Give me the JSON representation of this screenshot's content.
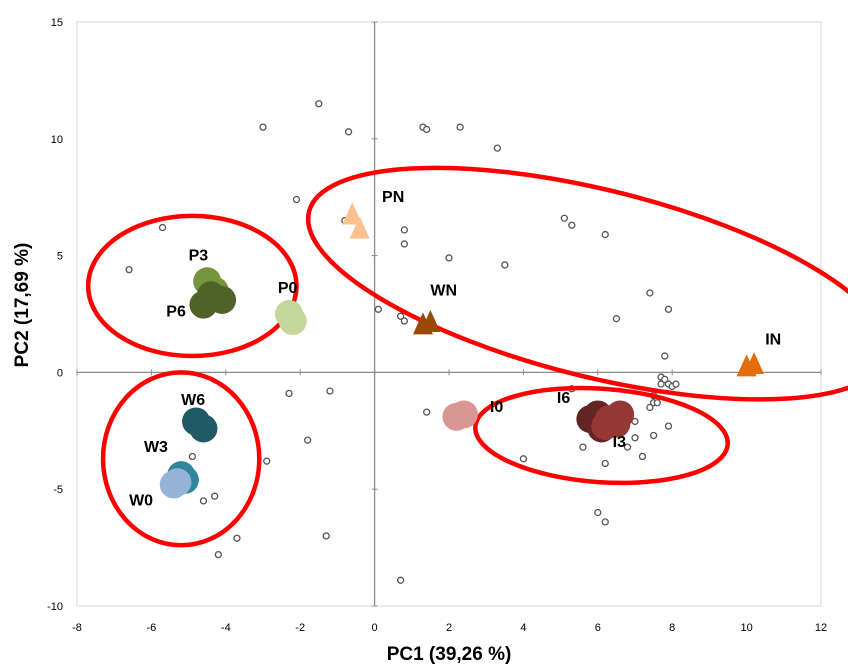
{
  "chart_data": {
    "type": "scatter",
    "title": "",
    "xlabel": "PC1 (39,26 %)",
    "ylabel": "PC2 (17,69 %)",
    "xlim": [
      -8,
      12
    ],
    "ylim": [
      -10,
      15
    ],
    "x_ticks": [
      -8,
      -6,
      -4,
      -2,
      0,
      2,
      4,
      6,
      8,
      10,
      12
    ],
    "y_ticks": [
      -10,
      -5,
      0,
      5,
      10,
      15
    ],
    "grid": false,
    "loadings": {
      "color": "#555555",
      "points": [
        [
          -1.5,
          11.5
        ],
        [
          -3.0,
          10.5
        ],
        [
          -0.7,
          10.3
        ],
        [
          1.3,
          10.5
        ],
        [
          1.4,
          10.4
        ],
        [
          2.3,
          10.5
        ],
        [
          3.3,
          9.6
        ],
        [
          -2.1,
          7.4
        ],
        [
          -5.7,
          6.2
        ],
        [
          -0.8,
          6.5
        ],
        [
          0.8,
          6.1
        ],
        [
          0.8,
          5.5
        ],
        [
          2.0,
          4.9
        ],
        [
          3.5,
          4.6
        ],
        [
          5.1,
          6.6
        ],
        [
          5.3,
          6.3
        ],
        [
          6.2,
          5.9
        ],
        [
          7.4,
          3.4
        ],
        [
          7.9,
          2.7
        ],
        [
          6.5,
          2.3
        ],
        [
          -6.6,
          4.4
        ],
        [
          0.1,
          2.7
        ],
        [
          0.7,
          2.4
        ],
        [
          0.8,
          2.2
        ],
        [
          -2.2,
          1.8
        ],
        [
          7.8,
          0.7
        ],
        [
          -2.3,
          -0.9
        ],
        [
          -1.2,
          -0.8
        ],
        [
          -1.8,
          -2.9
        ],
        [
          -2.9,
          -3.8
        ],
        [
          -3.7,
          -7.1
        ],
        [
          -4.2,
          -7.8
        ],
        [
          -4.3,
          -5.3
        ],
        [
          -4.6,
          -5.5
        ],
        [
          -4.9,
          -3.6
        ],
        [
          -1.3,
          -7.0
        ],
        [
          0.7,
          -8.9
        ],
        [
          1.4,
          -1.7
        ],
        [
          4.0,
          -3.7
        ],
        [
          5.3,
          -0.7
        ],
        [
          5.6,
          -3.2
        ],
        [
          6.2,
          -3.9
        ],
        [
          6.0,
          -6.0
        ],
        [
          6.2,
          -6.4
        ],
        [
          6.8,
          -3.2
        ],
        [
          7.0,
          -2.8
        ],
        [
          7.2,
          -3.6
        ],
        [
          7.5,
          -2.7
        ],
        [
          7.4,
          -1.5
        ],
        [
          7.5,
          -1.3
        ],
        [
          7.7,
          -0.5
        ],
        [
          7.7,
          -0.2
        ],
        [
          7.8,
          -0.3
        ],
        [
          7.9,
          -0.5
        ],
        [
          8.0,
          -0.6
        ],
        [
          8.1,
          -0.5
        ],
        [
          7.6,
          -1.3
        ],
        [
          7.5,
          -1.0
        ],
        [
          7.9,
          -2.3
        ],
        [
          7.0,
          -2.1
        ],
        [
          2.2,
          -1.5
        ]
      ]
    },
    "groups": [
      {
        "label": "P3",
        "marker": "circle",
        "color": "#76943c",
        "label_at": [
          -5.0,
          4.8
        ],
        "points": [
          [
            -4.5,
            3.9
          ],
          [
            -4.3,
            3.5
          ]
        ]
      },
      {
        "label": "P6",
        "marker": "circle",
        "color": "#4f6228",
        "label_at": [
          -5.6,
          2.4
        ],
        "points": [
          [
            -4.6,
            2.9
          ],
          [
            -4.1,
            3.1
          ],
          [
            -4.4,
            3.3
          ]
        ]
      },
      {
        "label": "P0",
        "marker": "circle",
        "color": "#c4d79b",
        "label_at": [
          -2.6,
          3.4
        ],
        "points": [
          [
            -2.3,
            2.5
          ],
          [
            -2.2,
            2.2
          ]
        ]
      },
      {
        "label": "W6",
        "marker": "circle",
        "color": "#215967",
        "label_at": [
          -5.2,
          -1.4
        ],
        "points": [
          [
            -4.8,
            -2.1
          ],
          [
            -4.6,
            -2.4
          ]
        ]
      },
      {
        "label": "W3",
        "marker": "circle",
        "color": "#31869b",
        "label_at": [
          -6.2,
          -3.4
        ],
        "points": [
          [
            -5.2,
            -4.4
          ],
          [
            -5.1,
            -4.6
          ]
        ]
      },
      {
        "label": "W0",
        "marker": "circle",
        "color": "#95b3d7",
        "label_at": [
          -6.6,
          -5.7
        ],
        "points": [
          [
            -5.4,
            -4.8
          ],
          [
            -5.3,
            -4.7
          ]
        ]
      },
      {
        "label": "I0",
        "marker": "circle",
        "color": "#da9694",
        "label_at": [
          3.1,
          -1.7
        ],
        "points": [
          [
            2.2,
            -1.9
          ],
          [
            2.4,
            -1.8
          ]
        ]
      },
      {
        "label": "I6",
        "marker": "circle",
        "color": "#632523",
        "label_at": [
          4.9,
          -1.3
        ],
        "points": [
          [
            5.8,
            -2.0
          ],
          [
            6.0,
            -1.8
          ],
          [
            6.1,
            -2.4
          ]
        ]
      },
      {
        "label": "I3",
        "marker": "circle",
        "color": "#953735",
        "label_at": [
          6.4,
          -3.2
        ],
        "points": [
          [
            6.3,
            -2.0
          ],
          [
            6.5,
            -2.2
          ],
          [
            6.6,
            -1.8
          ],
          [
            6.2,
            -2.3
          ]
        ]
      },
      {
        "label": "PN",
        "marker": "triangle",
        "color": "#fac090",
        "label_at": [
          0.2,
          7.3
        ],
        "points": [
          [
            -0.6,
            6.8
          ],
          [
            -0.4,
            6.2
          ]
        ]
      },
      {
        "label": "WN",
        "marker": "triangle",
        "color": "#984807",
        "label_at": [
          1.5,
          3.3
        ],
        "points": [
          [
            1.3,
            2.1
          ],
          [
            1.5,
            2.2
          ]
        ]
      },
      {
        "label": "IN",
        "marker": "triangle",
        "color": "#e46c0a",
        "label_at": [
          10.5,
          1.2
        ],
        "points": [
          [
            10.0,
            0.3
          ],
          [
            10.2,
            0.4
          ]
        ]
      }
    ],
    "ellipses": {
      "color": "#ff0000",
      "shapes": [
        {
          "cx": -4.9,
          "cy": 3.7,
          "rx": 2.8,
          "ry": 3.0,
          "rot": 0
        },
        {
          "cx": -5.2,
          "cy": -3.7,
          "rx": 2.1,
          "ry": 3.7,
          "rot": 0
        },
        {
          "cx": 6.0,
          "cy": 3.8,
          "rx": 8.0,
          "ry": 4.0,
          "rot": 14
        },
        {
          "cx": 6.1,
          "cy": -2.7,
          "rx": 3.4,
          "ry": 2.0,
          "rot": 4
        }
      ]
    }
  }
}
